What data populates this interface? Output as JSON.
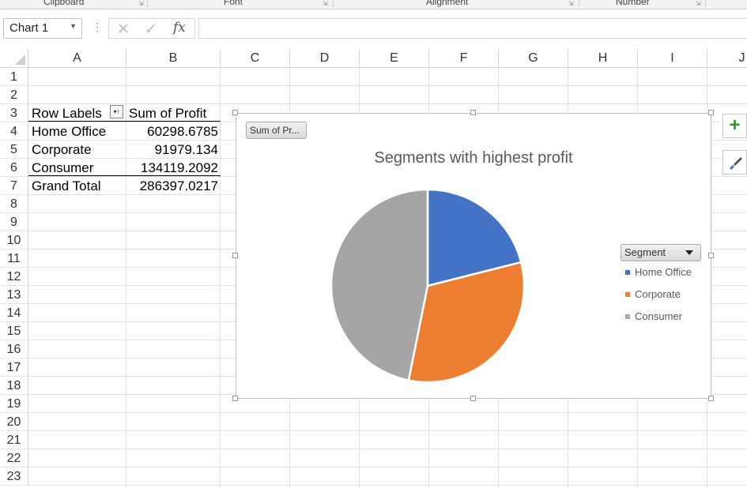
{
  "ribbon": {
    "groups": [
      "Clipboard",
      "Font",
      "Alignment",
      "Number"
    ]
  },
  "formula_bar": {
    "name_box": "Chart 1",
    "cancel_icon": "✕",
    "enter_icon": "✓",
    "fx_label": "fx",
    "value": ""
  },
  "columns": [
    "A",
    "B",
    "C",
    "D",
    "E",
    "F",
    "G",
    "H",
    "I",
    "J"
  ],
  "rows": [
    "1",
    "2",
    "3",
    "4",
    "5",
    "6",
    "7",
    "8",
    "9",
    "10",
    "11",
    "12",
    "13",
    "14",
    "15",
    "16",
    "17",
    "18",
    "19",
    "20",
    "21",
    "22",
    "23"
  ],
  "pivot": {
    "header_a": "Row Labels",
    "header_b": "Sum of Profit",
    "rows": [
      {
        "label": "Home Office",
        "value": "60298.6785"
      },
      {
        "label": "Corporate",
        "value": "91979.134"
      },
      {
        "label": "Consumer",
        "value": "134119.2092"
      }
    ],
    "total_label": "Grand Total",
    "total_value": "286397.0217"
  },
  "chart_data": {
    "type": "pie",
    "title": "Segments with highest profit",
    "value_field_button": "Sum of Pr...",
    "legend_field_button": "Segment",
    "legend_position": "right",
    "categories": [
      "Home Office",
      "Corporate",
      "Consumer"
    ],
    "values": [
      60298.6785,
      91979.134,
      134119.2092
    ],
    "colors": [
      "#4472C4",
      "#ED7D31",
      "#A5A5A5"
    ]
  },
  "side_buttons": {
    "add_element_icon": "+",
    "style_icon": "brush-icon"
  }
}
